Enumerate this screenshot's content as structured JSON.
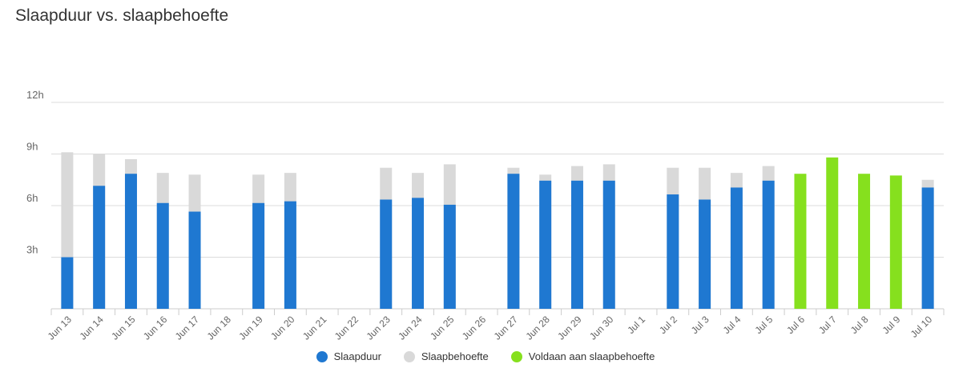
{
  "chart_data": {
    "type": "bar",
    "title": "Slaapduur vs. slaapbehoefte",
    "y_ticks": [
      "3h",
      "6h",
      "9h",
      "12h"
    ],
    "ylim": [
      0,
      12
    ],
    "grid": true,
    "legend_position": "bottom-center",
    "categories": [
      "Jun 13",
      "Jun 14",
      "Jun 15",
      "Jun 16",
      "Jun 17",
      "Jun 18",
      "Jun 19",
      "Jun 20",
      "Jun 21",
      "Jun 22",
      "Jun 23",
      "Jun 24",
      "Jun 25",
      "Jun 26",
      "Jun 27",
      "Jun 28",
      "Jun 29",
      "Jun 30",
      "Jul 1",
      "Jul 2",
      "Jul 3",
      "Jul 4",
      "Jul 5",
      "Jul 6",
      "Jul 7",
      "Jul 8",
      "Jul 9",
      "Jul 10"
    ],
    "series": [
      {
        "name": "Slaapduur",
        "color": "#1f78d1",
        "values": [
          3.0,
          7.15,
          7.85,
          6.15,
          5.65,
          null,
          6.15,
          6.25,
          null,
          null,
          6.35,
          6.45,
          6.05,
          null,
          7.85,
          7.45,
          7.45,
          7.45,
          null,
          6.65,
          6.35,
          7.05,
          7.45,
          null,
          null,
          null,
          null,
          7.05
        ]
      },
      {
        "name": "Slaapbehoefte",
        "color": "#d9d9d9",
        "values": [
          9.1,
          9.0,
          8.7,
          7.9,
          7.8,
          null,
          7.8,
          7.9,
          null,
          null,
          8.2,
          7.9,
          8.4,
          null,
          8.2,
          7.8,
          8.3,
          8.4,
          null,
          8.2,
          8.2,
          7.9,
          8.3,
          null,
          null,
          null,
          null,
          7.5
        ]
      },
      {
        "name": "Voldaan aan slaapbehoefte",
        "color": "#86e01e",
        "values": [
          null,
          null,
          null,
          null,
          null,
          null,
          null,
          null,
          null,
          null,
          null,
          null,
          null,
          null,
          null,
          null,
          null,
          null,
          null,
          null,
          null,
          null,
          null,
          7.85,
          8.8,
          7.85,
          7.75,
          null
        ]
      }
    ]
  }
}
